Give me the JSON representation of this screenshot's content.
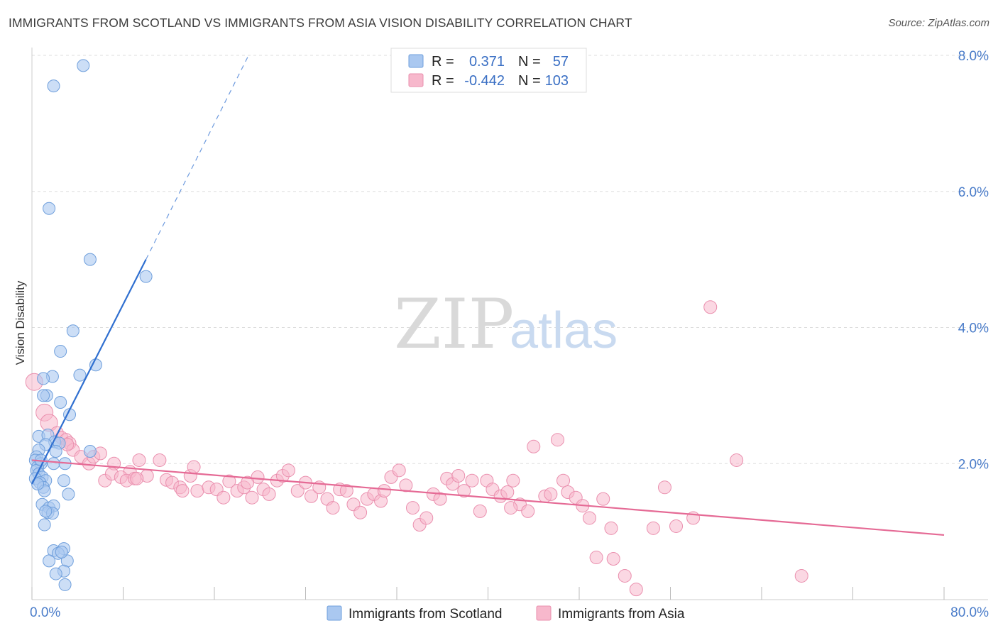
{
  "title": "IMMIGRANTS FROM SCOTLAND VS IMMIGRANTS FROM ASIA VISION DISABILITY CORRELATION CHART",
  "source": "Source: ZipAtlas.com",
  "watermark": {
    "zip": "ZIP",
    "atlas": "atlas"
  },
  "colors": {
    "scotland_fill": "#aac8f0",
    "scotland_stroke": "#6f9fdc",
    "scotland_line": "#2f6fd0",
    "asia_fill": "#f7b8cc",
    "asia_stroke": "#ea8fae",
    "asia_line": "#e56a95",
    "tick_label": "#4a7cc9",
    "grid": "#dddddd"
  },
  "legend": {
    "rows": [
      {
        "r_label": "R =",
        "r_value": "0.371",
        "n_label": "N =",
        "n_value": "57"
      },
      {
        "r_label": "R =",
        "r_value": "-0.442",
        "n_label": "N =",
        "n_value": "103"
      }
    ]
  },
  "chart_data": {
    "type": "scatter",
    "title": "IMMIGRANTS FROM SCOTLAND VS IMMIGRANTS FROM ASIA VISION DISABILITY CORRELATION CHART",
    "xlabel": "",
    "ylabel": "Vision Disability",
    "xlim": [
      0,
      80
    ],
    "ylim": [
      0,
      8.2
    ],
    "x_tick_labels": [
      "0.0%",
      "80.0%"
    ],
    "y_ticks": [
      2,
      4,
      6,
      8
    ],
    "y_tick_labels": [
      "2.0%",
      "4.0%",
      "6.0%",
      "8.0%"
    ],
    "grid": true,
    "legend_position": "bottom-center",
    "series": [
      {
        "name": "Immigrants from Scotland",
        "R": 0.371,
        "N": 57,
        "trend": {
          "x": [
            0.0,
            10.0
          ],
          "y": [
            1.7,
            5.0
          ],
          "dashed_extension_to": [
            19.0,
            8.0
          ]
        },
        "points": [
          [
            4.5,
            7.85
          ],
          [
            1.9,
            7.55
          ],
          [
            1.5,
            5.75
          ],
          [
            5.1,
            5.0
          ],
          [
            10.0,
            4.75
          ],
          [
            3.6,
            3.95
          ],
          [
            2.5,
            3.65
          ],
          [
            5.6,
            3.45
          ],
          [
            4.2,
            3.3
          ],
          [
            1.8,
            3.28
          ],
          [
            1.0,
            3.25
          ],
          [
            1.3,
            3.0
          ],
          [
            1.0,
            3.0
          ],
          [
            2.5,
            2.9
          ],
          [
            3.3,
            2.72
          ],
          [
            0.6,
            2.4
          ],
          [
            1.4,
            2.42
          ],
          [
            2.0,
            2.32
          ],
          [
            2.4,
            2.3
          ],
          [
            1.2,
            2.28
          ],
          [
            0.6,
            2.2
          ],
          [
            2.1,
            2.18
          ],
          [
            5.1,
            2.18
          ],
          [
            0.4,
            2.1
          ],
          [
            0.3,
            2.05
          ],
          [
            0.8,
            2.0
          ],
          [
            0.5,
            1.95
          ],
          [
            1.9,
            2.0
          ],
          [
            2.9,
            2.0
          ],
          [
            0.4,
            1.9
          ],
          [
            0.6,
            1.85
          ],
          [
            0.9,
            1.8
          ],
          [
            0.3,
            1.78
          ],
          [
            1.2,
            1.75
          ],
          [
            2.8,
            1.75
          ],
          [
            0.7,
            1.72
          ],
          [
            1.0,
            1.65
          ],
          [
            1.1,
            1.6
          ],
          [
            3.2,
            1.55
          ],
          [
            0.9,
            1.4
          ],
          [
            1.5,
            1.35
          ],
          [
            1.9,
            1.38
          ],
          [
            1.4,
            1.28
          ],
          [
            1.8,
            1.27
          ],
          [
            1.1,
            1.1
          ],
          [
            1.9,
            0.72
          ],
          [
            2.8,
            0.75
          ],
          [
            2.3,
            0.68
          ],
          [
            1.5,
            0.57
          ],
          [
            3.1,
            0.57
          ],
          [
            2.8,
            0.42
          ],
          [
            2.1,
            0.38
          ],
          [
            2.9,
            0.22
          ],
          [
            1.2,
            1.3
          ],
          [
            0.8,
            2.05
          ],
          [
            2.6,
            0.7
          ],
          [
            0.5,
            1.7
          ]
        ]
      },
      {
        "name": "Immigrants from Asia",
        "R": -0.442,
        "N": 103,
        "trend": {
          "x": [
            0.0,
            80.0
          ],
          "y": [
            2.05,
            0.95
          ]
        },
        "points": [
          [
            0.2,
            3.2
          ],
          [
            1.1,
            2.75
          ],
          [
            1.5,
            2.6
          ],
          [
            2.2,
            2.45
          ],
          [
            2.6,
            2.38
          ],
          [
            3.0,
            2.35
          ],
          [
            3.3,
            2.3
          ],
          [
            3.6,
            2.2
          ],
          [
            4.3,
            2.1
          ],
          [
            5.0,
            2.0
          ],
          [
            5.4,
            2.1
          ],
          [
            6.0,
            2.15
          ],
          [
            7.2,
            2.0
          ],
          [
            8.6,
            1.88
          ],
          [
            9.4,
            2.05
          ],
          [
            6.4,
            1.75
          ],
          [
            7.0,
            1.85
          ],
          [
            7.8,
            1.8
          ],
          [
            8.3,
            1.75
          ],
          [
            9.0,
            1.78
          ],
          [
            10.1,
            1.82
          ],
          [
            11.2,
            2.05
          ],
          [
            11.8,
            1.76
          ],
          [
            12.3,
            1.72
          ],
          [
            13.0,
            1.65
          ],
          [
            13.9,
            1.82
          ],
          [
            14.5,
            1.6
          ],
          [
            14.2,
            1.95
          ],
          [
            15.5,
            1.65
          ],
          [
            16.2,
            1.62
          ],
          [
            16.8,
            1.5
          ],
          [
            17.3,
            1.74
          ],
          [
            18.0,
            1.6
          ],
          [
            18.6,
            1.65
          ],
          [
            19.3,
            1.5
          ],
          [
            19.8,
            1.8
          ],
          [
            20.3,
            1.62
          ],
          [
            20.8,
            1.55
          ],
          [
            21.5,
            1.75
          ],
          [
            22.0,
            1.82
          ],
          [
            22.5,
            1.9
          ],
          [
            23.3,
            1.6
          ],
          [
            24.0,
            1.72
          ],
          [
            24.5,
            1.52
          ],
          [
            25.2,
            1.65
          ],
          [
            25.9,
            1.48
          ],
          [
            26.4,
            1.35
          ],
          [
            27.0,
            1.62
          ],
          [
            27.6,
            1.6
          ],
          [
            28.2,
            1.4
          ],
          [
            28.8,
            1.28
          ],
          [
            29.4,
            1.48
          ],
          [
            30.0,
            1.55
          ],
          [
            30.6,
            1.45
          ],
          [
            31.5,
            1.8
          ],
          [
            32.2,
            1.9
          ],
          [
            32.8,
            1.68
          ],
          [
            33.4,
            1.35
          ],
          [
            34.0,
            1.1
          ],
          [
            34.6,
            1.2
          ],
          [
            35.2,
            1.55
          ],
          [
            35.8,
            1.48
          ],
          [
            36.4,
            1.78
          ],
          [
            36.9,
            1.7
          ],
          [
            37.4,
            1.82
          ],
          [
            37.9,
            1.6
          ],
          [
            38.6,
            1.75
          ],
          [
            39.3,
            1.3
          ],
          [
            39.9,
            1.75
          ],
          [
            40.4,
            1.62
          ],
          [
            41.1,
            1.52
          ],
          [
            41.7,
            1.58
          ],
          [
            42.2,
            1.75
          ],
          [
            42.8,
            1.4
          ],
          [
            43.5,
            1.3
          ],
          [
            44.0,
            2.25
          ],
          [
            45.0,
            1.52
          ],
          [
            45.5,
            1.55
          ],
          [
            46.1,
            2.35
          ],
          [
            46.6,
            1.75
          ],
          [
            47.0,
            1.58
          ],
          [
            47.7,
            1.5
          ],
          [
            48.3,
            1.38
          ],
          [
            48.9,
            1.2
          ],
          [
            49.5,
            0.62
          ],
          [
            50.1,
            1.48
          ],
          [
            51.0,
            0.6
          ],
          [
            52.0,
            0.35
          ],
          [
            50.8,
            1.05
          ],
          [
            53.0,
            0.15
          ],
          [
            54.5,
            1.05
          ],
          [
            55.5,
            1.65
          ],
          [
            56.5,
            1.08
          ],
          [
            58.0,
            1.2
          ],
          [
            59.5,
            4.3
          ],
          [
            61.8,
            2.05
          ],
          [
            67.5,
            0.35
          ],
          [
            13.2,
            1.6
          ],
          [
            3.1,
            2.28
          ],
          [
            9.2,
            1.78
          ],
          [
            18.9,
            1.72
          ],
          [
            30.9,
            1.6
          ],
          [
            42.0,
            1.35
          ]
        ]
      }
    ]
  },
  "bottom_legend": [
    {
      "label": "Immigrants from Scotland"
    },
    {
      "label": "Immigrants from Asia"
    }
  ]
}
